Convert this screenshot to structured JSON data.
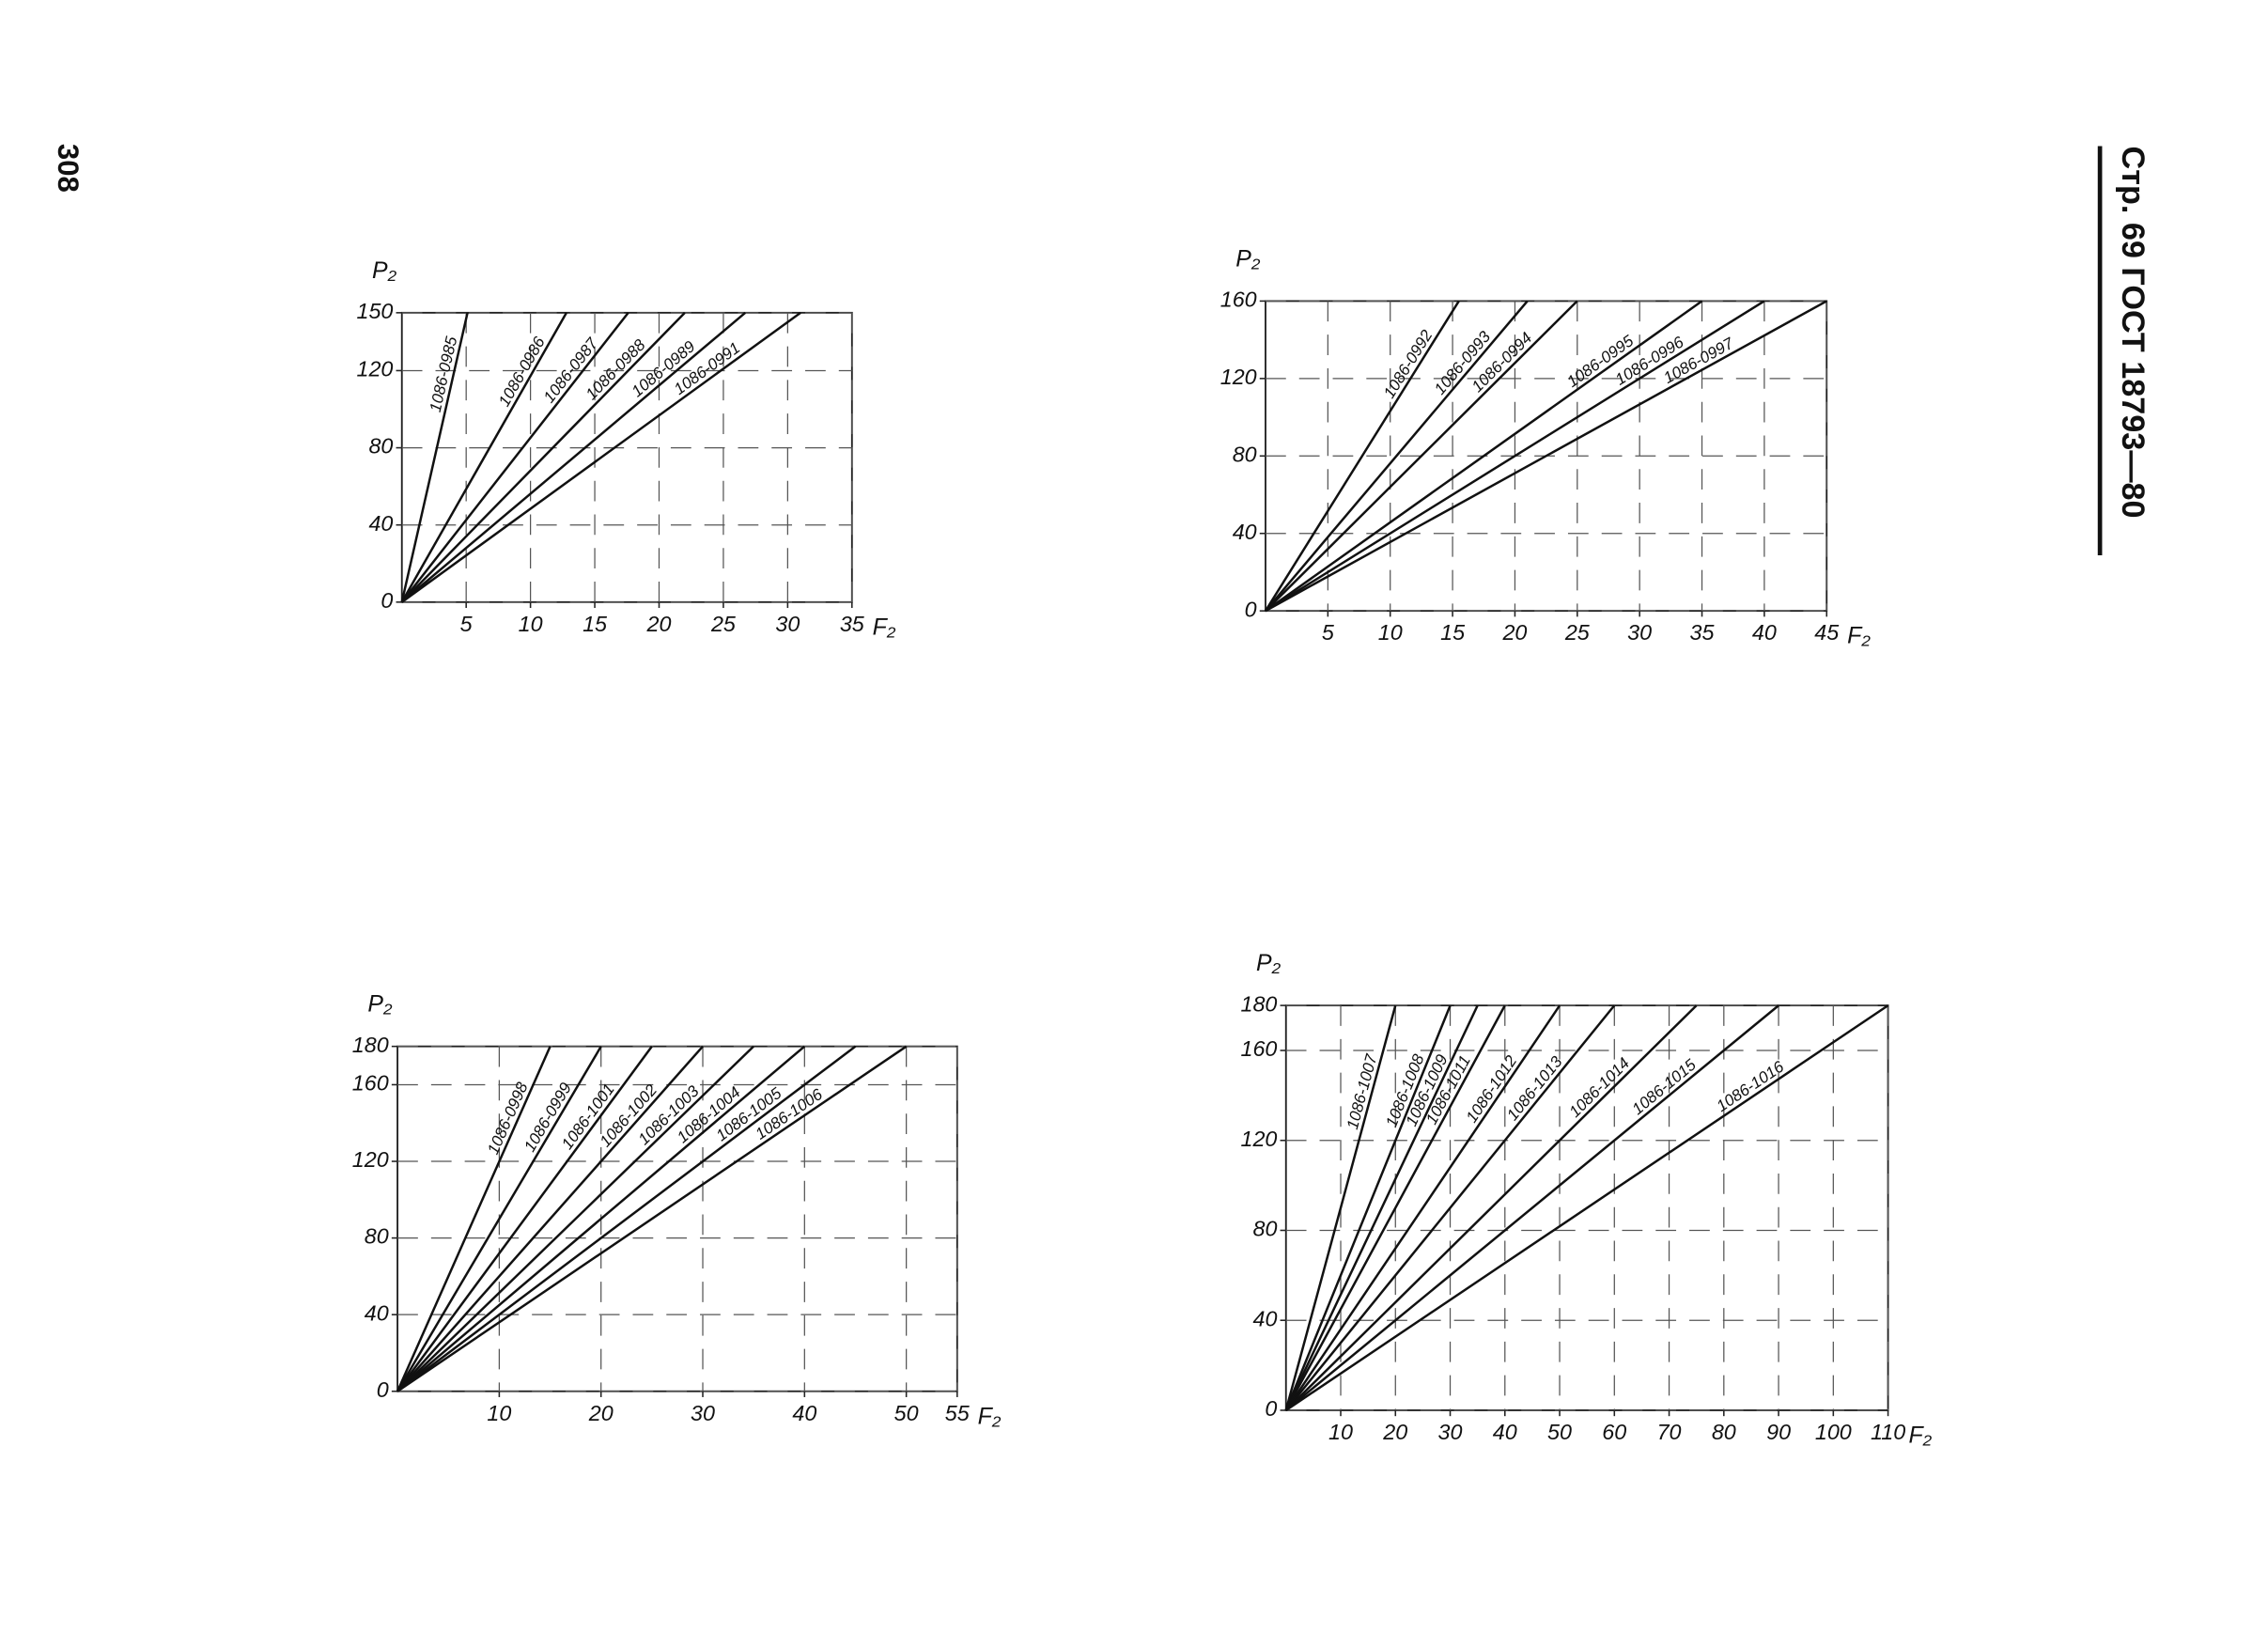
{
  "page": {
    "number": "308",
    "header": "Стр. 69 ГОСТ 18793—80"
  },
  "chart_data": [
    {
      "type": "line",
      "x_label": "F₂",
      "y_label": "P₂",
      "color": "#111111",
      "grid": true,
      "xlim": [
        0,
        35
      ],
      "ylim": [
        0,
        150
      ],
      "xticks": [
        5,
        10,
        15,
        20,
        25,
        30,
        35
      ],
      "yticks": [
        0,
        40,
        80,
        120,
        150
      ],
      "series": [
        {
          "name": "1086-0985",
          "x": [
            0,
            5.1
          ],
          "values": [
            0,
            150
          ]
        },
        {
          "name": "1086-0986",
          "x": [
            0,
            12.8
          ],
          "values": [
            0,
            150
          ]
        },
        {
          "name": "1086-0987",
          "x": [
            0,
            17.6
          ],
          "values": [
            0,
            150
          ]
        },
        {
          "name": "1086-0988",
          "x": [
            0,
            22
          ],
          "values": [
            0,
            150
          ]
        },
        {
          "name": "1086-0989",
          "x": [
            0,
            26.7
          ],
          "values": [
            0,
            150
          ]
        },
        {
          "name": "1086-0991",
          "x": [
            0,
            31
          ],
          "values": [
            0,
            150
          ]
        }
      ]
    },
    {
      "type": "line",
      "x_label": "F₂",
      "y_label": "P₂",
      "color": "#111111",
      "grid": true,
      "xlim": [
        0,
        45
      ],
      "ylim": [
        0,
        160
      ],
      "xticks": [
        5,
        10,
        15,
        20,
        25,
        30,
        35,
        40,
        45
      ],
      "yticks": [
        0,
        40,
        80,
        120,
        160
      ],
      "series": [
        {
          "name": "1086-0992",
          "x": [
            0,
            15.5
          ],
          "values": [
            0,
            160
          ]
        },
        {
          "name": "1086-0993",
          "x": [
            0,
            21
          ],
          "values": [
            0,
            160
          ]
        },
        {
          "name": "1086-0994",
          "x": [
            0,
            25
          ],
          "values": [
            0,
            160
          ]
        },
        {
          "name": "1086-0995",
          "x": [
            0,
            35
          ],
          "values": [
            0,
            160
          ]
        },
        {
          "name": "1086-0996",
          "x": [
            0,
            40
          ],
          "values": [
            0,
            160
          ]
        },
        {
          "name": "1086-0997",
          "x": [
            0,
            45
          ],
          "values": [
            0,
            160
          ]
        }
      ]
    },
    {
      "type": "line",
      "x_label": "F₂",
      "y_label": "P₂",
      "color": "#111111",
      "grid": true,
      "xlim": [
        0,
        55
      ],
      "ylim": [
        0,
        180
      ],
      "xticks": [
        10,
        20,
        30,
        40,
        50,
        55
      ],
      "yticks": [
        0,
        40,
        80,
        120,
        160,
        180
      ],
      "series": [
        {
          "name": "1086-0998",
          "x": [
            0,
            15
          ],
          "values": [
            0,
            180
          ]
        },
        {
          "name": "1086-0999",
          "x": [
            0,
            20
          ],
          "values": [
            0,
            180
          ]
        },
        {
          "name": "1086-1001",
          "x": [
            0,
            25
          ],
          "values": [
            0,
            180
          ]
        },
        {
          "name": "1086-1002",
          "x": [
            0,
            30
          ],
          "values": [
            0,
            180
          ]
        },
        {
          "name": "1086-1003",
          "x": [
            0,
            35
          ],
          "values": [
            0,
            180
          ]
        },
        {
          "name": "1086-1004",
          "x": [
            0,
            40
          ],
          "values": [
            0,
            180
          ]
        },
        {
          "name": "1086-1005",
          "x": [
            0,
            45
          ],
          "values": [
            0,
            180
          ]
        },
        {
          "name": "1086-1006",
          "x": [
            0,
            50
          ],
          "values": [
            0,
            180
          ]
        }
      ]
    },
    {
      "type": "line",
      "x_label": "F₂",
      "y_label": "P₂",
      "color": "#111111",
      "grid": true,
      "xlim": [
        0,
        110
      ],
      "ylim": [
        0,
        180
      ],
      "xticks": [
        10,
        20,
        30,
        40,
        50,
        60,
        70,
        80,
        90,
        100,
        110
      ],
      "yticks": [
        0,
        40,
        80,
        120,
        160,
        180
      ],
      "series": [
        {
          "name": "1086-1007",
          "x": [
            0,
            20
          ],
          "values": [
            0,
            180
          ]
        },
        {
          "name": "1086-1008",
          "x": [
            0,
            30
          ],
          "values": [
            0,
            180
          ]
        },
        {
          "name": "1086-1009",
          "x": [
            0,
            35
          ],
          "values": [
            0,
            180
          ]
        },
        {
          "name": "1086-1011",
          "x": [
            0,
            40
          ],
          "values": [
            0,
            180
          ]
        },
        {
          "name": "1086-1012",
          "x": [
            0,
            50
          ],
          "values": [
            0,
            180
          ]
        },
        {
          "name": "1086-1013",
          "x": [
            0,
            60
          ],
          "values": [
            0,
            180
          ]
        },
        {
          "name": "1086-1014",
          "x": [
            0,
            75
          ],
          "values": [
            0,
            180
          ]
        },
        {
          "name": "1086-1015",
          "x": [
            0,
            90
          ],
          "values": [
            0,
            180
          ]
        },
        {
          "name": "1086-1016",
          "x": [
            0,
            110
          ],
          "values": [
            0,
            180
          ]
        }
      ]
    }
  ]
}
